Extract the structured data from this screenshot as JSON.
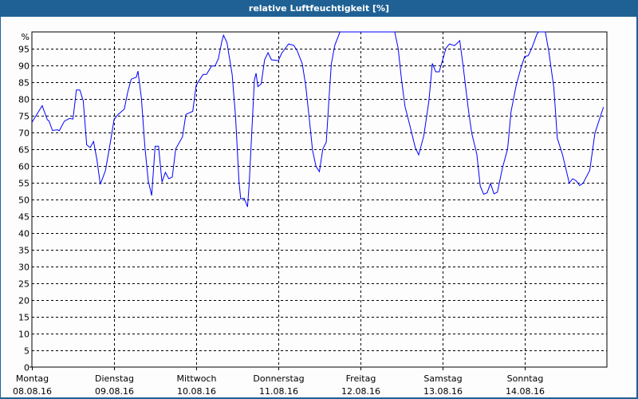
{
  "window": {
    "title": "relative Luftfeuchtigkeit [%]"
  },
  "chart_data": {
    "type": "line",
    "title": "relative Luftfeuchtigkeit [%]",
    "ylabel": "%",
    "ylim": [
      0,
      100
    ],
    "yticks": [
      0,
      5,
      10,
      15,
      20,
      25,
      30,
      35,
      40,
      45,
      50,
      55,
      60,
      65,
      70,
      75,
      80,
      85,
      90,
      95
    ],
    "grid": true,
    "line_color": "#0000ff",
    "x_categories": [
      {
        "day": "Montag",
        "date": "08.08.16"
      },
      {
        "day": "Dienstag",
        "date": "09.08.16"
      },
      {
        "day": "Mittwoch",
        "date": "10.08.16"
      },
      {
        "day": "Donnerstag",
        "date": "11.08.16"
      },
      {
        "day": "Freitag",
        "date": "12.08.16"
      },
      {
        "day": "Samstag",
        "date": "13.08.16"
      },
      {
        "day": "Sonntag",
        "date": "14.08.16"
      }
    ],
    "series": [
      {
        "points": [
          [
            "08.08.16 00:00",
            73
          ],
          [
            "08.08.16 03:00",
            78
          ],
          [
            "08.08.16 04:30",
            73.8
          ],
          [
            "08.08.16 05:00",
            73.4
          ],
          [
            "08.08.16 06:00",
            70.6
          ],
          [
            "08.08.16 07:30",
            70.8
          ],
          [
            "08.08.16 08:00",
            70.5
          ],
          [
            "08.08.16 09:30",
            73.4
          ],
          [
            "08.08.16 11:00",
            74.2
          ],
          [
            "08.08.16 12:00",
            74
          ],
          [
            "08.08.16 13:00",
            82.7
          ],
          [
            "08.08.16 14:00",
            82.7
          ],
          [
            "08.08.16 15:00",
            79.4
          ],
          [
            "08.08.16 16:00",
            66.3
          ],
          [
            "08.08.16 17:00",
            65.5
          ],
          [
            "08.08.16 18:00",
            67.3
          ],
          [
            "08.08.16 19:00",
            61.9
          ],
          [
            "08.08.16 20:00",
            54.5
          ],
          [
            "08.08.16 21:30",
            58.7
          ],
          [
            "08.08.16 23:00",
            67.5
          ],
          [
            "09.08.16 00:00",
            73.8
          ],
          [
            "09.08.16 01:00",
            75.2
          ],
          [
            "09.08.16 03:00",
            77
          ],
          [
            "09.08.16 04:00",
            82.1
          ],
          [
            "09.08.16 05:00",
            85.9
          ],
          [
            "09.08.16 06:30",
            86.5
          ],
          [
            "09.08.16 07:00",
            88.3
          ],
          [
            "09.08.16 08:00",
            80.2
          ],
          [
            "09.08.16 09:00",
            65.9
          ],
          [
            "09.08.16 10:00",
            55.6
          ],
          [
            "09.08.16 11:00",
            51.2
          ],
          [
            "09.08.16 12:00",
            65.9
          ],
          [
            "09.08.16 13:00",
            65.9
          ],
          [
            "09.08.16 14:00",
            55.2
          ],
          [
            "09.08.16 15:00",
            58.1
          ],
          [
            "09.08.16 16:00",
            56.2
          ],
          [
            "09.08.16 17:00",
            56.7
          ],
          [
            "09.08.16 18:00",
            65.1
          ],
          [
            "09.08.16 20:00",
            68.7
          ],
          [
            "09.08.16 21:00",
            75.4
          ],
          [
            "09.08.16 23:00",
            76.3
          ],
          [
            "10.08.16 00:00",
            84.1
          ],
          [
            "10.08.16 02:00",
            87.3
          ],
          [
            "10.08.16 03:00",
            87.3
          ],
          [
            "10.08.16 04:30",
            89.8
          ],
          [
            "10.08.16 05:30",
            89.8
          ],
          [
            "10.08.16 06:30",
            92.1
          ],
          [
            "10.08.16 07:30",
            97.2
          ],
          [
            "10.08.16 08:00",
            99
          ],
          [
            "10.08.16 09:00",
            96.8
          ],
          [
            "10.08.16 10:30",
            87.3
          ],
          [
            "10.08.16 11:30",
            74.6
          ],
          [
            "10.08.16 12:30",
            55.6
          ],
          [
            "10.08.16 13:00",
            50.2
          ],
          [
            "10.08.16 14:00",
            50.4
          ],
          [
            "10.08.16 15:00",
            47.8
          ],
          [
            "10.08.16 15:30",
            54.8
          ],
          [
            "10.08.16 17:00",
            85.7
          ],
          [
            "10.08.16 17:30",
            87.7
          ],
          [
            "10.08.16 18:00",
            83.7
          ],
          [
            "10.08.16 19:00",
            84.5
          ],
          [
            "10.08.16 20:00",
            91.7
          ],
          [
            "10.08.16 21:00",
            93.8
          ],
          [
            "10.08.16 22:00",
            91.7
          ],
          [
            "11.08.16 00:00",
            91.4
          ],
          [
            "11.08.16 01:00",
            93.7
          ],
          [
            "11.08.16 03:00",
            96.4
          ],
          [
            "11.08.16 04:30",
            96
          ],
          [
            "11.08.16 05:30",
            94.4
          ],
          [
            "11.08.16 07:00",
            90.5
          ],
          [
            "11.08.16 08:00",
            84.1
          ],
          [
            "11.08.16 09:00",
            74.6
          ],
          [
            "11.08.16 10:00",
            64.7
          ],
          [
            "11.08.16 11:00",
            59.9
          ],
          [
            "11.08.16 12:00",
            58.3
          ],
          [
            "11.08.16 13:00",
            65.1
          ],
          [
            "11.08.16 14:00",
            67.1
          ],
          [
            "11.08.16 15:00",
            83.3
          ],
          [
            "11.08.16 15:30",
            90.5
          ],
          [
            "11.08.16 16:30",
            96
          ],
          [
            "11.08.16 18:00",
            100
          ],
          [
            "12.08.16 10:00",
            100
          ],
          [
            "12.08.16 11:00",
            95.2
          ],
          [
            "12.08.16 12:00",
            85.7
          ],
          [
            "12.08.16 13:00",
            77.8
          ],
          [
            "12.08.16 14:30",
            71.8
          ],
          [
            "12.08.16 16:00",
            65.5
          ],
          [
            "12.08.16 17:00",
            63.3
          ],
          [
            "12.08.16 18:30",
            69
          ],
          [
            "12.08.16 20:00",
            79.4
          ],
          [
            "12.08.16 21:00",
            90.6
          ],
          [
            "12.08.16 22:00",
            88.1
          ],
          [
            "12.08.16 23:00",
            88.1
          ],
          [
            "13.08.16 01:00",
            95.2
          ],
          [
            "13.08.16 02:00",
            96.4
          ],
          [
            "13.08.16 03:30",
            95.9
          ],
          [
            "13.08.16 05:00",
            97.4
          ],
          [
            "13.08.16 06:00",
            89.7
          ],
          [
            "13.08.16 07:30",
            77
          ],
          [
            "13.08.16 08:30",
            69.8
          ],
          [
            "13.08.16 10:00",
            63.5
          ],
          [
            "13.08.16 11:00",
            54
          ],
          [
            "13.08.16 12:00",
            51.6
          ],
          [
            "13.08.16 13:00",
            52
          ],
          [
            "13.08.16 14:00",
            54.8
          ],
          [
            "13.08.16 15:00",
            51.7
          ],
          [
            "13.08.16 16:00",
            52.2
          ],
          [
            "13.08.16 17:30",
            59.5
          ],
          [
            "13.08.16 19:00",
            65.1
          ],
          [
            "13.08.16 20:00",
            76.2
          ],
          [
            "13.08.16 21:30",
            84.1
          ],
          [
            "13.08.16 23:00",
            89.7
          ],
          [
            "14.08.16 00:00",
            92.7
          ],
          [
            "14.08.16 01:00",
            92.9
          ],
          [
            "14.08.16 02:00",
            95
          ],
          [
            "14.08.16 03:30",
            99.2
          ],
          [
            "14.08.16 04:00",
            100
          ],
          [
            "14.08.16 06:00",
            100
          ],
          [
            "14.08.16 07:00",
            94.4
          ],
          [
            "14.08.16 08:30",
            83.3
          ],
          [
            "14.08.16 09:30",
            68.3
          ],
          [
            "14.08.16 11:00",
            63.5
          ],
          [
            "14.08.16 13:00",
            54.9
          ],
          [
            "14.08.16 14:00",
            56.2
          ],
          [
            "14.08.16 15:00",
            55.6
          ],
          [
            "14.08.16 16:00",
            54.2
          ],
          [
            "14.08.16 17:00",
            54.8
          ],
          [
            "14.08.16 19:00",
            58.7
          ],
          [
            "14.08.16 20:30",
            69.8
          ],
          [
            "14.08.16 23:00",
            77.6
          ]
        ]
      }
    ]
  }
}
